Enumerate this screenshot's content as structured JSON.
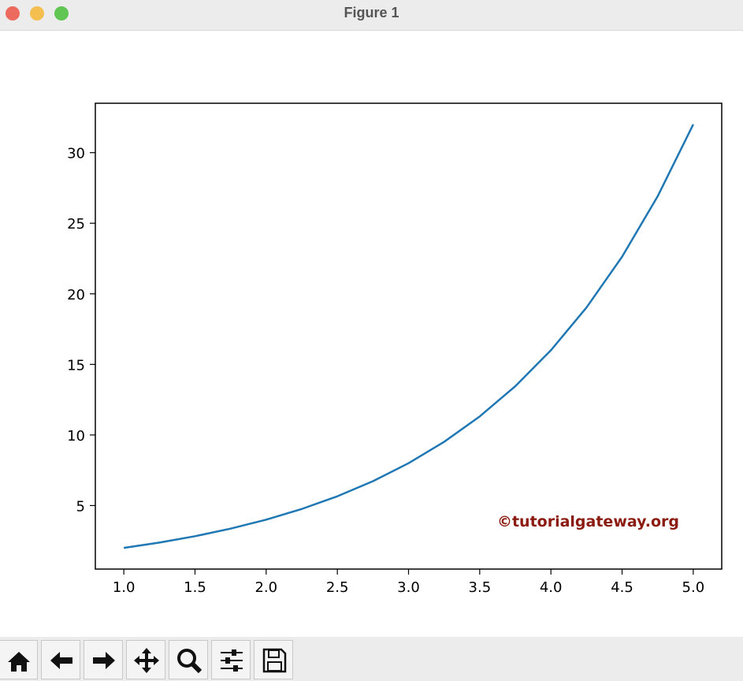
{
  "window": {
    "title": "Figure 1"
  },
  "chart_data": {
    "type": "line",
    "x": [
      1,
      1.25,
      1.5,
      1.75,
      2,
      2.25,
      2.5,
      2.75,
      3,
      3.25,
      3.5,
      3.75,
      4,
      4.25,
      4.5,
      4.75,
      5
    ],
    "values": [
      2,
      2.378,
      2.828,
      3.364,
      4,
      4.757,
      5.657,
      6.727,
      8,
      9.514,
      11.314,
      13.454,
      16,
      19.027,
      22.627,
      26.909,
      32
    ],
    "color": "#1f77b4",
    "xlim": [
      0.8,
      5.2
    ],
    "xticks": [
      {
        "value": 1,
        "label": "1.0"
      },
      {
        "value": 1.5,
        "label": "1.5"
      },
      {
        "value": 2,
        "label": "2.0"
      },
      {
        "value": 2.5,
        "label": "2.5"
      },
      {
        "value": 3,
        "label": "3.0"
      },
      {
        "value": 3.5,
        "label": "3.5"
      },
      {
        "value": 4,
        "label": "4.0"
      },
      {
        "value": 4.5,
        "label": "4.5"
      },
      {
        "value": 5,
        "label": "5.0"
      }
    ],
    "ylim": [
      0.5,
      33.5
    ],
    "yticks": [
      5,
      10,
      15,
      20,
      25,
      30
    ],
    "annotation": "©tutorialgateway.org"
  }
}
